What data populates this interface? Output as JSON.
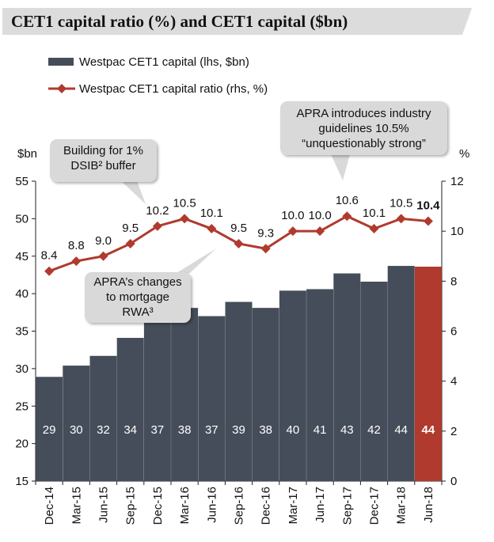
{
  "title": "CET1 capital ratio (%) and CET1 capital ($bn)",
  "colors": {
    "bar": "#454d5a",
    "highlight_bar": "#b03a2e",
    "line": "#b03a2e",
    "callout_bg": "#d9d9d9"
  },
  "callouts": {
    "building": "Building for 1%\nDSIB² buffer",
    "apra_industry": "APRA introduces industry\nguidelines 10.5%\n“unquestionably strong”",
    "apra_mortgage": "APRA’s changes\nto mortgage\nRWA³"
  },
  "chart_data": {
    "type": "bar",
    "title": "CET1 capital ratio (%) and CET1 capital ($bn)",
    "categories": [
      "Dec-14",
      "Mar-15",
      "Jun-15",
      "Sep-15",
      "Dec-15",
      "Mar-16",
      "Jun-16",
      "Sep-16",
      "Dec-16",
      "Mar-17",
      "Jun-17",
      "Sep-17",
      "Dec-17",
      "Mar-18",
      "Jun-18"
    ],
    "series": [
      {
        "name": "Westpac CET1 capital (lhs, $bn)",
        "type": "bar",
        "axis": "left",
        "values": [
          28.9,
          30.4,
          31.7,
          34.1,
          36.6,
          38.1,
          37.0,
          38.9,
          38.1,
          40.4,
          40.6,
          42.7,
          41.6,
          43.7,
          43.6
        ],
        "labels": [
          "29",
          "30",
          "32",
          "34",
          "37",
          "38",
          "37",
          "39",
          "38",
          "40",
          "41",
          "43",
          "42",
          "44",
          "44"
        ],
        "highlight_index": 14
      },
      {
        "name": "Westpac CET1 capital ratio (rhs, %)",
        "type": "line",
        "axis": "right",
        "values": [
          8.4,
          8.8,
          9.0,
          9.5,
          10.2,
          10.5,
          10.1,
          9.5,
          9.3,
          10.0,
          10.0,
          10.6,
          10.1,
          10.5,
          10.4
        ],
        "labels": [
          "8.4",
          "8.8",
          "9.0",
          "9.5",
          "10.2",
          "10.5",
          "10.1",
          "9.5",
          "9.3",
          "10.0",
          "10.0",
          "10.6",
          "10.1",
          "10.5",
          "10.4"
        ],
        "highlight_index": 14
      }
    ],
    "ylabel": "$bn",
    "y2label": "%",
    "ylim": [
      15,
      55
    ],
    "yticks": [
      15,
      20,
      25,
      30,
      35,
      40,
      45,
      50,
      55
    ],
    "y2lim": [
      0,
      12
    ],
    "y2ticks": [
      0,
      2,
      4,
      6,
      8,
      10,
      12
    ]
  }
}
